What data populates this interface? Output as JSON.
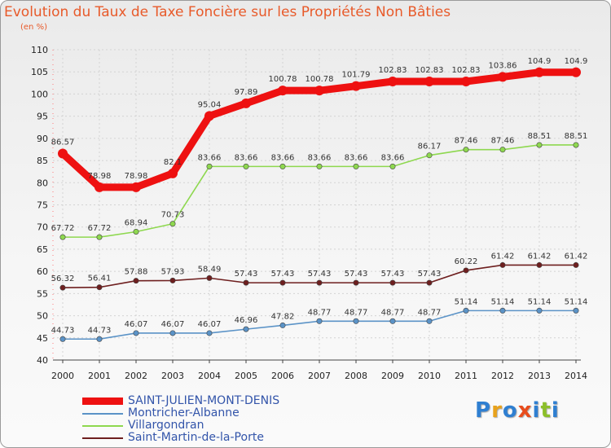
{
  "chart_data": {
    "type": "line",
    "title": "Evolution du Taux de Taxe Foncière sur les Propriétés Non Bâties",
    "ylabel": "(en %)",
    "xlabel": "",
    "ylim": [
      40,
      110
    ],
    "yticks": [
      "40",
      "45",
      "50",
      "55",
      "60",
      "65",
      "70",
      "75",
      "80",
      "85",
      "90",
      "95",
      "100",
      "105",
      "110"
    ],
    "categories": [
      "2000",
      "2001",
      "2002",
      "2003",
      "2004",
      "2005",
      "2006",
      "2007",
      "2008",
      "2009",
      "2010",
      "2011",
      "2012",
      "2013",
      "2014"
    ],
    "series": [
      {
        "name": "Montricher-Albanne",
        "color": "#5b93c7",
        "values": [
          44.73,
          44.73,
          46.07,
          46.07,
          46.07,
          46.96,
          47.82,
          48.77,
          48.77,
          48.77,
          48.77,
          51.14,
          51.14,
          51.14,
          51.14
        ],
        "labels": [
          "44.73",
          "44.73",
          "46.07",
          "46.07",
          "46.07",
          "46.96",
          "47.82",
          "48.77",
          "48.77",
          "48.77",
          "48.77",
          "51.14",
          "51.14",
          "51.14",
          "51.14"
        ]
      },
      {
        "name": "Saint-Martin-de-la-Porte",
        "color": "#6e1f1f",
        "values": [
          56.32,
          56.41,
          57.88,
          57.93,
          58.49,
          57.43,
          57.43,
          57.43,
          57.43,
          57.43,
          57.43,
          60.22,
          61.42,
          61.42,
          61.42
        ],
        "labels": [
          "56.32",
          "56.41",
          "57.88",
          "57.93",
          "58.49",
          "57.43",
          "57.43",
          "57.43",
          "57.43",
          "57.43",
          "57.43",
          "60.22",
          "61.42",
          "61.42",
          "61.42"
        ]
      },
      {
        "name": "Villargondran",
        "color": "#8ed84f",
        "values": [
          67.72,
          67.72,
          68.94,
          70.73,
          83.66,
          83.66,
          83.66,
          83.66,
          83.66,
          83.66,
          86.17,
          87.46,
          87.46,
          88.51,
          88.51
        ],
        "labels": [
          "67.72",
          "67.72",
          "68.94",
          "70.73",
          "83.66",
          "83.66",
          "83.66",
          "83.66",
          "83.66",
          "83.66",
          "86.17",
          "87.46",
          "87.46",
          "88.51",
          "88.51"
        ]
      },
      {
        "name": "SAINT-JULIEN-MONT-DENIS",
        "color": "#ee1111",
        "values": [
          86.57,
          78.98,
          78.98,
          82.1,
          95.04,
          97.89,
          100.78,
          100.78,
          101.79,
          102.83,
          102.83,
          102.83,
          103.86,
          104.9,
          104.9
        ],
        "labels": [
          "86.57",
          "78.98",
          "78.98",
          "82.1",
          "95.04",
          "97.89",
          "100.78",
          "100.78",
          "101.79",
          "102.83",
          "102.83",
          "102.83",
          "103.86",
          "104.9",
          "104.9"
        ]
      }
    ],
    "legend": [
      {
        "name": "SAINT-JULIEN-MONT-DENIS",
        "color": "#ee1111",
        "thick": true
      },
      {
        "name": "Montricher-Albanne",
        "color": "#5b93c7",
        "thick": false
      },
      {
        "name": "Villargondran",
        "color": "#8ed84f",
        "thick": false
      },
      {
        "name": "Saint-Martin-de-la-Porte",
        "color": "#6e1f1f",
        "thick": false
      }
    ]
  },
  "brand": {
    "parts": [
      "P",
      "r",
      "o",
      "x",
      "i",
      "t",
      "i"
    ],
    "colors": [
      "#2f7fd1",
      "#e8a21c",
      "#2f7fd1",
      "#e84c1c",
      "#2f7fd1",
      "#8cbf2a",
      "#2f7fd1"
    ]
  }
}
